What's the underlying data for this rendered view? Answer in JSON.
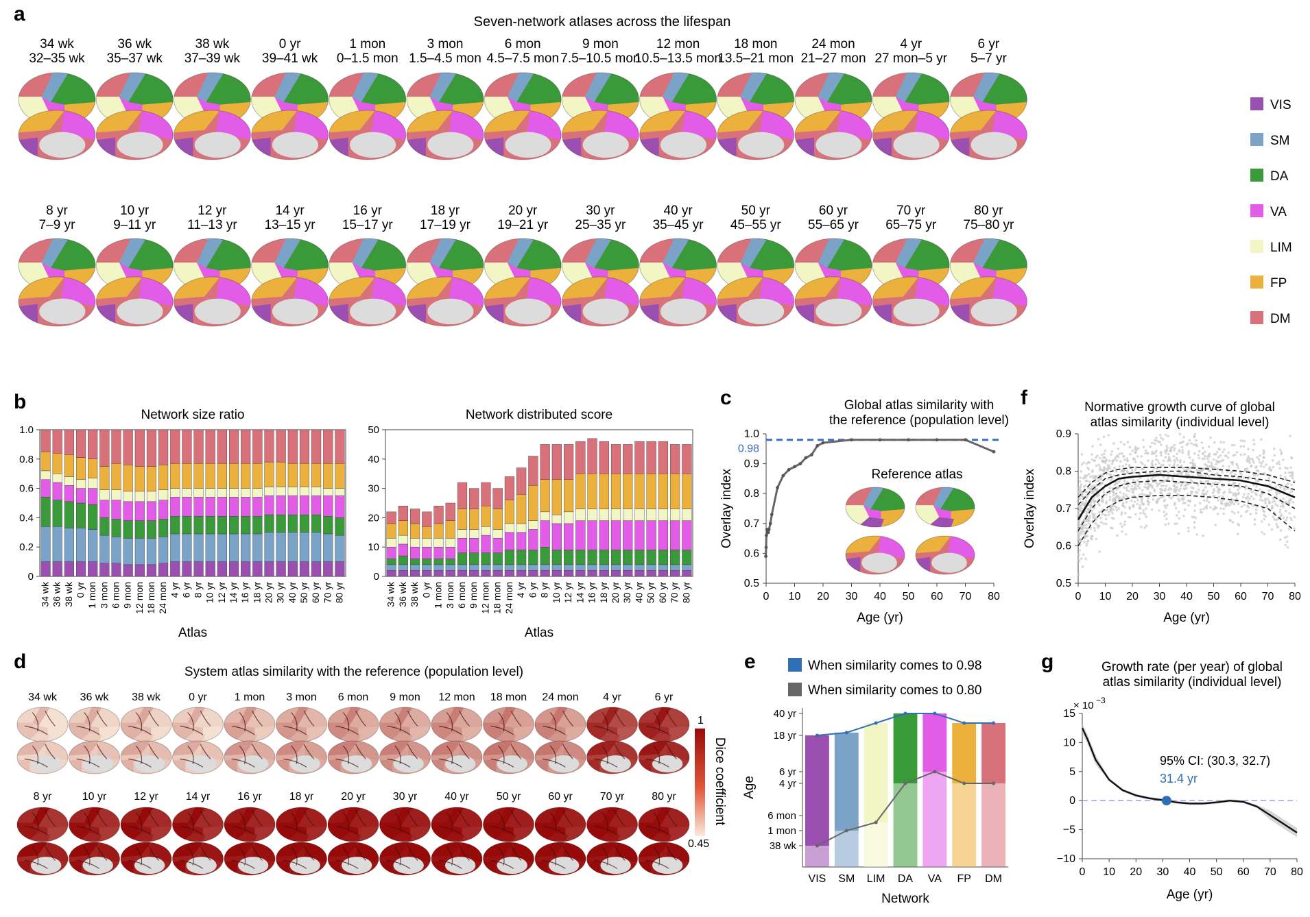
{
  "figure": {
    "panel_letters": [
      "a",
      "b",
      "c",
      "d",
      "e",
      "f",
      "g"
    ]
  },
  "panel_a": {
    "title": "Seven-network atlases across the lifespan",
    "atlases": [
      {
        "age": "34 wk",
        "range": "32–35 wk"
      },
      {
        "age": "36 wk",
        "range": "35–37 wk"
      },
      {
        "age": "38 wk",
        "range": "37–39 wk"
      },
      {
        "age": "0 yr",
        "range": "39–41 wk"
      },
      {
        "age": "1 mon",
        "range": "0–1.5 mon"
      },
      {
        "age": "3 mon",
        "range": "1.5–4.5 mon"
      },
      {
        "age": "6 mon",
        "range": "4.5–7.5 mon"
      },
      {
        "age": "9 mon",
        "range": "7.5–10.5 mon"
      },
      {
        "age": "12 mon",
        "range": "10.5–13.5 mon"
      },
      {
        "age": "18 mon",
        "range": "13.5–21 mon"
      },
      {
        "age": "24 mon",
        "range": "21–27 mon"
      },
      {
        "age": "4 yr",
        "range": "27 mon–5 yr"
      },
      {
        "age": "6 yr",
        "range": "5–7 yr"
      },
      {
        "age": "8 yr",
        "range": "7–9 yr"
      },
      {
        "age": "10 yr",
        "range": "9–11 yr"
      },
      {
        "age": "12 yr",
        "range": "11–13 yr"
      },
      {
        "age": "14 yr",
        "range": "13–15 yr"
      },
      {
        "age": "16 yr",
        "range": "15–17 yr"
      },
      {
        "age": "18 yr",
        "range": "17–19 yr"
      },
      {
        "age": "20 yr",
        "range": "19–21 yr"
      },
      {
        "age": "30 yr",
        "range": "25–35 yr"
      },
      {
        "age": "40 yr",
        "range": "35–45 yr"
      },
      {
        "age": "50 yr",
        "range": "45–55 yr"
      },
      {
        "age": "60 yr",
        "range": "55–65 yr"
      },
      {
        "age": "70 yr",
        "range": "65–75 yr"
      },
      {
        "age": "80 yr",
        "range": "75–80 yr"
      }
    ],
    "legend": [
      {
        "label": "VIS",
        "color": "#9b4fb0"
      },
      {
        "label": "SM",
        "color": "#7ba3c8"
      },
      {
        "label": "DA",
        "color": "#3a9a3a"
      },
      {
        "label": "VA",
        "color": "#e25ce8"
      },
      {
        "label": "LIM",
        "color": "#f2f5c4"
      },
      {
        "label": "FP",
        "color": "#ecb13c"
      },
      {
        "label": "DM",
        "color": "#d8717a"
      }
    ]
  },
  "panel_d": {
    "title": "System atlas similarity with the reference (population level)",
    "ages": [
      "34 wk",
      "36 wk",
      "38 wk",
      "0 yr",
      "1 mon",
      "3 mon",
      "6 mon",
      "9 mon",
      "12 mon",
      "18 mon",
      "24 mon",
      "4 yr",
      "6 yr",
      "8 yr",
      "10 yr",
      "12 yr",
      "14 yr",
      "16 yr",
      "18 yr",
      "20 yr",
      "30 yr",
      "40 yr",
      "50 yr",
      "60 yr",
      "70 yr",
      "80 yr"
    ],
    "colorbar": {
      "label": "Dice coefficient",
      "max": "1",
      "min": "0.45"
    }
  },
  "chart_data": [
    {
      "id": "b-left",
      "type": "bar",
      "title": "Network size ratio",
      "xlabel": "Atlas",
      "ylabel": "",
      "ylim": [
        0,
        1
      ],
      "yticks": [
        "0",
        "0.2",
        "0.4",
        "0.6",
        "0.8",
        "1.0"
      ],
      "stacked": true,
      "categories": [
        "34 wk",
        "36 wk",
        "38 wk",
        "0 yr",
        "1 mon",
        "3 mon",
        "6 mon",
        "9 mon",
        "12 mon",
        "18 mon",
        "24 mon",
        "4 yr",
        "6 yr",
        "8 yr",
        "10 yr",
        "12 yr",
        "14 yr",
        "16 yr",
        "18 yr",
        "20 yr",
        "30 yr",
        "40 yr",
        "50 yr",
        "60 yr",
        "70 yr",
        "80 yr"
      ],
      "series": [
        {
          "name": "VIS",
          "color": "#9b4fb0",
          "values": [
            0.1,
            0.1,
            0.1,
            0.1,
            0.1,
            0.09,
            0.09,
            0.08,
            0.08,
            0.08,
            0.09,
            0.1,
            0.1,
            0.1,
            0.1,
            0.1,
            0.1,
            0.1,
            0.1,
            0.1,
            0.1,
            0.1,
            0.1,
            0.1,
            0.1,
            0.1
          ]
        },
        {
          "name": "SM",
          "color": "#7ba3c8",
          "values": [
            0.24,
            0.24,
            0.23,
            0.23,
            0.22,
            0.19,
            0.18,
            0.18,
            0.18,
            0.18,
            0.18,
            0.19,
            0.19,
            0.19,
            0.19,
            0.19,
            0.19,
            0.19,
            0.19,
            0.2,
            0.2,
            0.2,
            0.2,
            0.2,
            0.19,
            0.18
          ]
        },
        {
          "name": "DA",
          "color": "#3a9a3a",
          "values": [
            0.2,
            0.18,
            0.18,
            0.17,
            0.17,
            0.12,
            0.12,
            0.12,
            0.12,
            0.12,
            0.12,
            0.12,
            0.12,
            0.12,
            0.12,
            0.12,
            0.12,
            0.12,
            0.12,
            0.12,
            0.12,
            0.12,
            0.12,
            0.12,
            0.12,
            0.12
          ]
        },
        {
          "name": "VA",
          "color": "#e25ce8",
          "values": [
            0.12,
            0.12,
            0.11,
            0.1,
            0.11,
            0.12,
            0.13,
            0.13,
            0.13,
            0.13,
            0.13,
            0.13,
            0.13,
            0.13,
            0.13,
            0.13,
            0.13,
            0.13,
            0.13,
            0.13,
            0.13,
            0.13,
            0.13,
            0.13,
            0.14,
            0.15
          ]
        },
        {
          "name": "LIM",
          "color": "#f2f5c4",
          "values": [
            0.06,
            0.06,
            0.06,
            0.06,
            0.07,
            0.07,
            0.07,
            0.07,
            0.07,
            0.07,
            0.07,
            0.06,
            0.06,
            0.06,
            0.06,
            0.06,
            0.06,
            0.06,
            0.06,
            0.06,
            0.06,
            0.06,
            0.06,
            0.06,
            0.05,
            0.05
          ]
        },
        {
          "name": "FP",
          "color": "#ecb13c",
          "values": [
            0.13,
            0.14,
            0.15,
            0.15,
            0.13,
            0.16,
            0.18,
            0.18,
            0.17,
            0.17,
            0.17,
            0.17,
            0.17,
            0.17,
            0.17,
            0.17,
            0.17,
            0.17,
            0.17,
            0.17,
            0.17,
            0.16,
            0.16,
            0.16,
            0.17,
            0.17
          ]
        },
        {
          "name": "DM",
          "color": "#d8717a",
          "values": [
            0.15,
            0.16,
            0.17,
            0.19,
            0.2,
            0.25,
            0.23,
            0.24,
            0.25,
            0.25,
            0.24,
            0.23,
            0.23,
            0.23,
            0.23,
            0.23,
            0.23,
            0.23,
            0.23,
            0.22,
            0.22,
            0.23,
            0.23,
            0.23,
            0.23,
            0.23
          ]
        }
      ]
    },
    {
      "id": "b-right",
      "type": "bar",
      "title": "Network distributed score",
      "xlabel": "Atlas",
      "ylabel": "",
      "ylim": [
        0,
        50
      ],
      "yticks": [
        "0",
        "10",
        "20",
        "30",
        "40",
        "50"
      ],
      "stacked": true,
      "categories": [
        "34 wk",
        "36 wk",
        "38 wk",
        "0 yr",
        "1 mon",
        "3 mon",
        "6 mon",
        "9 mon",
        "12 mon",
        "18 mon",
        "24 mon",
        "4 yr",
        "6 yr",
        "8 yr",
        "10 yr",
        "12 yr",
        "14 yr",
        "16 yr",
        "18 yr",
        "20 yr",
        "30 yr",
        "40 yr",
        "50 yr",
        "60 yr",
        "70 yr",
        "80 yr"
      ],
      "series": [
        {
          "name": "VIS",
          "color": "#9b4fb0",
          "values": [
            2,
            2,
            2,
            2,
            2,
            2,
            2,
            2,
            2,
            2,
            2,
            2,
            2,
            2,
            2,
            2,
            2,
            2,
            2,
            2,
            2,
            2,
            2,
            2,
            2,
            2
          ]
        },
        {
          "name": "SM",
          "color": "#7ba3c8",
          "values": [
            2,
            2,
            2,
            2,
            2,
            2,
            2,
            2,
            2,
            2,
            2,
            2,
            2,
            2,
            2,
            2,
            2,
            2,
            2,
            2,
            2,
            2,
            2,
            2,
            2,
            2
          ]
        },
        {
          "name": "DA",
          "color": "#3a9a3a",
          "values": [
            2,
            3,
            2,
            2,
            2,
            2,
            4,
            4,
            4,
            4,
            5,
            5,
            5,
            6,
            5,
            5,
            5,
            5,
            5,
            5,
            5,
            5,
            5,
            5,
            5,
            5
          ]
        },
        {
          "name": "VA",
          "color": "#e25ce8",
          "values": [
            4,
            4,
            4,
            4,
            4,
            4,
            5,
            5,
            6,
            5,
            6,
            6,
            7,
            9,
            9,
            9,
            10,
            10,
            10,
            10,
            10,
            10,
            10,
            10,
            10,
            10
          ]
        },
        {
          "name": "LIM",
          "color": "#f2f5c4",
          "values": [
            3,
            3,
            3,
            3,
            3,
            3,
            3,
            3,
            3,
            3,
            3,
            3,
            3,
            3,
            3,
            4,
            4,
            4,
            4,
            4,
            4,
            4,
            4,
            4,
            4,
            4
          ]
        },
        {
          "name": "FP",
          "color": "#ecb13c",
          "values": [
            5,
            5,
            5,
            4,
            5,
            6,
            7,
            7,
            7,
            7,
            8,
            10,
            12,
            11,
            12,
            11,
            12,
            12,
            12,
            12,
            12,
            12,
            12,
            12,
            12,
            12
          ]
        },
        {
          "name": "DM",
          "color": "#d8717a",
          "values": [
            4,
            5,
            5,
            5,
            6,
            6,
            9,
            7,
            8,
            7,
            8,
            9,
            10,
            12,
            12,
            12,
            11,
            12,
            11,
            10,
            10,
            11,
            11,
            11,
            10,
            10
          ]
        }
      ]
    },
    {
      "id": "c",
      "type": "line",
      "title": "Global atlas similarity with the reference (population level)",
      "title_lines": [
        "Global atlas similarity with",
        "the reference (population level)"
      ],
      "xlabel": "Age (yr)",
      "ylabel": "Overlay index",
      "xlim": [
        0,
        80
      ],
      "ylim": [
        0.5,
        1.0
      ],
      "xticks": [
        "0",
        "10",
        "20",
        "30",
        "40",
        "50",
        "60",
        "70",
        "80"
      ],
      "yticks": [
        "0.5",
        "0.6",
        "0.7",
        "0.8",
        "0.9",
        "1.0"
      ],
      "reference_line": {
        "y": 0.98,
        "label": "0.98"
      },
      "inset_label": "Reference atlas",
      "series": [
        {
          "x": [
            -0.1,
            0.0,
            0.1,
            0.3,
            0.5,
            0.75,
            1.0,
            1.5,
            2.0,
            4,
            6,
            8,
            10,
            12,
            14,
            16,
            18,
            20,
            30,
            40,
            50,
            60,
            70,
            80
          ],
          "y": [
            0.59,
            0.62,
            0.66,
            0.68,
            0.67,
            0.67,
            0.68,
            0.7,
            0.73,
            0.82,
            0.86,
            0.88,
            0.89,
            0.9,
            0.92,
            0.93,
            0.96,
            0.97,
            0.98,
            0.98,
            0.98,
            0.98,
            0.98,
            0.94
          ]
        }
      ]
    },
    {
      "id": "e",
      "type": "bar",
      "xlabel": "Network",
      "ylabel": "Age",
      "categories": [
        "VIS",
        "SM",
        "LIM",
        "DA",
        "VA",
        "FP",
        "DM"
      ],
      "yticks": [
        "38 wk",
        "1 mon",
        "6 mon",
        "4 yr",
        "6 yr",
        "18 yr",
        "40 yr"
      ],
      "legend": [
        {
          "label": "When similarity comes to 0.98",
          "color": "#2f6fb5"
        },
        {
          "label": "When similarity comes to 0.80",
          "color": "#666666"
        }
      ],
      "series": [
        {
          "name": "When similarity comes to 0.98",
          "values": [
            "18 yr",
            "20 yr",
            "30 yr",
            "40 yr",
            "40 yr",
            "30 yr",
            "30 yr"
          ]
        },
        {
          "name": "When similarity comes to 0.80",
          "values": [
            "38 wk",
            "1 mon",
            "3 mon",
            "4 yr",
            "6 yr",
            "4 yr",
            "4 yr"
          ]
        }
      ],
      "bar_colors": [
        "#9b4fb0",
        "#7ba3c8",
        "#f2f5c4",
        "#3a9a3a",
        "#e25ce8",
        "#ecb13c",
        "#d8717a"
      ]
    },
    {
      "id": "f",
      "type": "scatter",
      "title": "Normative growth curve of global atlas similarity (individual level)",
      "title_lines": [
        "Normative growth curve of global",
        "atlas similarity (individual level)"
      ],
      "xlabel": "Age (yr)",
      "ylabel": "Overlay index",
      "xlim": [
        0,
        80
      ],
      "ylim": [
        0.5,
        0.9
      ],
      "xticks": [
        "0",
        "10",
        "20",
        "30",
        "40",
        "50",
        "60",
        "70",
        "80"
      ],
      "yticks": [
        "0.5",
        "0.6",
        "0.7",
        "0.8",
        "0.9"
      ],
      "curves": {
        "median": {
          "x": [
            0,
            5,
            10,
            15,
            20,
            30,
            40,
            50,
            60,
            70,
            80
          ],
          "y": [
            0.67,
            0.73,
            0.76,
            0.78,
            0.785,
            0.79,
            0.785,
            0.78,
            0.775,
            0.76,
            0.73
          ]
        },
        "upper_outer": {
          "x": [
            0,
            5,
            10,
            15,
            20,
            30,
            40,
            50,
            60,
            70,
            80
          ],
          "y": [
            0.73,
            0.77,
            0.795,
            0.805,
            0.81,
            0.81,
            0.81,
            0.805,
            0.8,
            0.79,
            0.77
          ]
        },
        "upper_inner": {
          "x": [
            0,
            5,
            10,
            15,
            20,
            30,
            40,
            50,
            60,
            70,
            80
          ],
          "y": [
            0.71,
            0.75,
            0.78,
            0.79,
            0.795,
            0.8,
            0.8,
            0.79,
            0.785,
            0.775,
            0.75
          ]
        },
        "lower_inner": {
          "x": [
            0,
            5,
            10,
            15,
            20,
            30,
            40,
            50,
            60,
            70,
            80
          ],
          "y": [
            0.64,
            0.7,
            0.74,
            0.76,
            0.77,
            0.775,
            0.77,
            0.765,
            0.76,
            0.74,
            0.7
          ]
        },
        "lower_outer": {
          "x": [
            0,
            5,
            10,
            15,
            20,
            30,
            40,
            50,
            60,
            70,
            80
          ],
          "y": [
            0.6,
            0.66,
            0.7,
            0.72,
            0.73,
            0.735,
            0.735,
            0.73,
            0.72,
            0.7,
            0.64
          ]
        }
      }
    },
    {
      "id": "g",
      "type": "line",
      "title": "Growth rate (per year) of global atlas similarity (individual level)",
      "title_lines": [
        "Growth rate (per year) of global",
        "atlas similarity (individual level)"
      ],
      "xlabel": "Age (yr)",
      "ylabel": "",
      "axis_multiplier": "× 10",
      "axis_multiplier_exp": "−3",
      "xlim": [
        0,
        80
      ],
      "ylim": [
        -10,
        15
      ],
      "xticks": [
        "0",
        "10",
        "20",
        "30",
        "40",
        "50",
        "60",
        "70",
        "80"
      ],
      "yticks": [
        "−10",
        "−5",
        "0",
        "5",
        "10",
        "15"
      ],
      "annotation": {
        "text": "95% CI: (30.3, 32.7)",
        "value_label": "31.4 yr",
        "x": 31.4,
        "y": 0
      },
      "series": [
        {
          "x": [
            0,
            2,
            5,
            10,
            15,
            20,
            25,
            31.4,
            35,
            40,
            45,
            50,
            55,
            60,
            65,
            70,
            75,
            80
          ],
          "y": [
            12.5,
            10.5,
            7.0,
            3.6,
            1.8,
            0.9,
            0.4,
            0.0,
            -0.3,
            -0.5,
            -0.5,
            -0.3,
            0.0,
            -0.2,
            -1.0,
            -2.5,
            -4.0,
            -5.5
          ]
        }
      ]
    }
  ]
}
